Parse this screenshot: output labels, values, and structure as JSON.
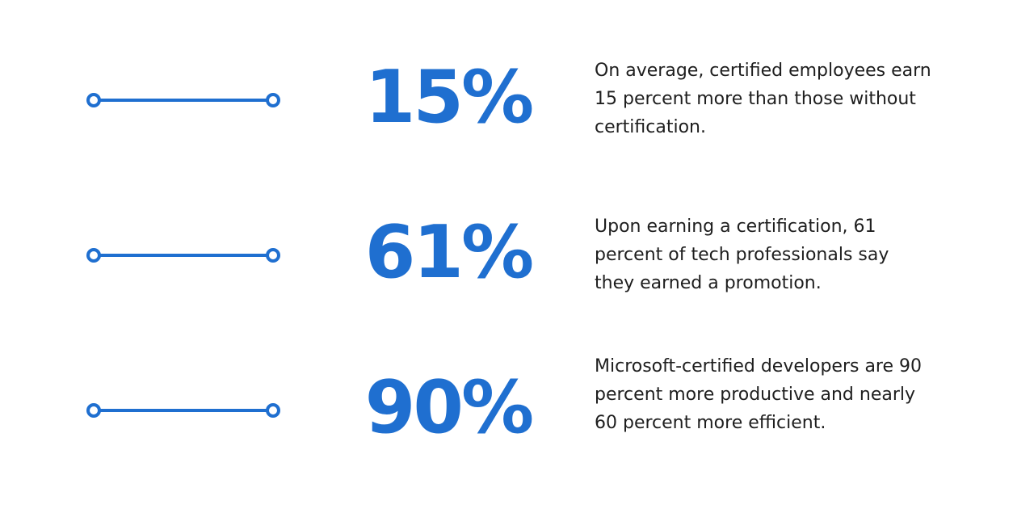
{
  "accent_color": "#1f6fd0",
  "text_color": "#1e1e1e",
  "stats": [
    {
      "figure": "15%",
      "description": "On average, certified employees earn 15 percent more than those without certification."
    },
    {
      "figure": "61%",
      "description": "Upon earning a certification, 61 percent of tech professionals say they earned a promotion."
    },
    {
      "figure": "90%",
      "description": "Microsoft-certified developers are 90 percent more productive and nearly 60 percent more efficient."
    }
  ]
}
